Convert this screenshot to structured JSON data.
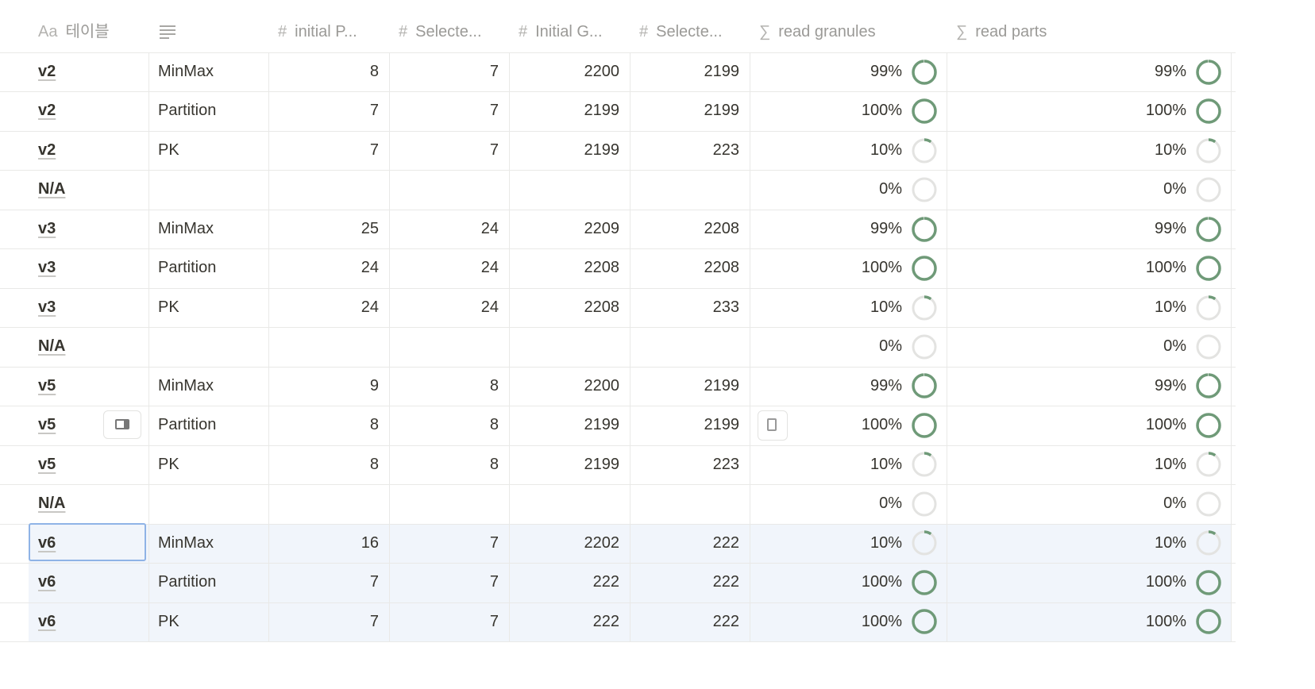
{
  "table": {
    "columns": [
      {
        "icon": "Aa",
        "name": "테이블"
      },
      null,
      {
        "icon": "#",
        "name": "initial P..."
      },
      {
        "icon": "#",
        "name": "Selecte..."
      },
      {
        "icon": "#",
        "name": "Initial G..."
      },
      {
        "icon": "#",
        "name": "Selecte..."
      },
      {
        "icon": "∑",
        "name": "read granules"
      },
      {
        "icon": "∑",
        "name": "read parts"
      }
    ],
    "rows": [
      [
        "v2",
        "MinMax",
        8,
        7,
        2200,
        2199,
        {
          "value": 99,
          "label": "99%"
        },
        {
          "value": 99,
          "label": "99%"
        }
      ],
      [
        "v2",
        "Partition",
        7,
        7,
        2199,
        2199,
        {
          "value": 100,
          "label": "100%"
        },
        {
          "value": 100,
          "label": "100%"
        }
      ],
      [
        "v2",
        "PK",
        7,
        7,
        2199,
        223,
        {
          "value": 10,
          "label": "10%"
        },
        {
          "value": 10,
          "label": "10%"
        }
      ],
      [
        "N/A",
        null,
        null,
        null,
        null,
        null,
        {
          "value": 0,
          "label": "0%"
        },
        {
          "value": 0,
          "label": "0%"
        }
      ],
      [
        "v3",
        "MinMax",
        25,
        24,
        2209,
        2208,
        {
          "value": 99,
          "label": "99%"
        },
        {
          "value": 99,
          "label": "99%"
        }
      ],
      [
        "v3",
        "Partition",
        24,
        24,
        2208,
        2208,
        {
          "value": 100,
          "label": "100%"
        },
        {
          "value": 100,
          "label": "100%"
        }
      ],
      [
        "v3",
        "PK",
        24,
        24,
        2208,
        233,
        {
          "value": 10,
          "label": "10%"
        },
        {
          "value": 10,
          "label": "10%"
        }
      ],
      [
        "N/A",
        null,
        null,
        null,
        null,
        null,
        {
          "value": 0,
          "label": "0%"
        },
        {
          "value": 0,
          "label": "0%"
        }
      ],
      [
        "v5",
        "MinMax",
        9,
        8,
        2200,
        2199,
        {
          "value": 99,
          "label": "99%"
        },
        {
          "value": 99,
          "label": "99%"
        }
      ],
      [
        "v5",
        "Partition",
        8,
        8,
        2199,
        2199,
        {
          "value": 100,
          "label": "100%"
        },
        {
          "value": 100,
          "label": "100%"
        }
      ],
      [
        "v5",
        "PK",
        8,
        8,
        2199,
        223,
        {
          "value": 10,
          "label": "10%"
        },
        {
          "value": 10,
          "label": "10%"
        }
      ],
      [
        "N/A",
        null,
        null,
        null,
        null,
        null,
        {
          "value": 0,
          "label": "0%"
        },
        {
          "value": 0,
          "label": "0%"
        }
      ],
      [
        "v6",
        "MinMax",
        16,
        7,
        2202,
        222,
        {
          "value": 10,
          "label": "10%"
        },
        {
          "value": 10,
          "label": "10%"
        }
      ],
      [
        "v6",
        "Partition",
        7,
        7,
        222,
        222,
        {
          "value": 100,
          "label": "100%"
        },
        {
          "value": 100,
          "label": "100%"
        }
      ],
      [
        "v6",
        "PK",
        7,
        7,
        222,
        222,
        {
          "value": 100,
          "label": "100%"
        },
        {
          "value": 100,
          "label": "100%"
        }
      ]
    ]
  }
}
